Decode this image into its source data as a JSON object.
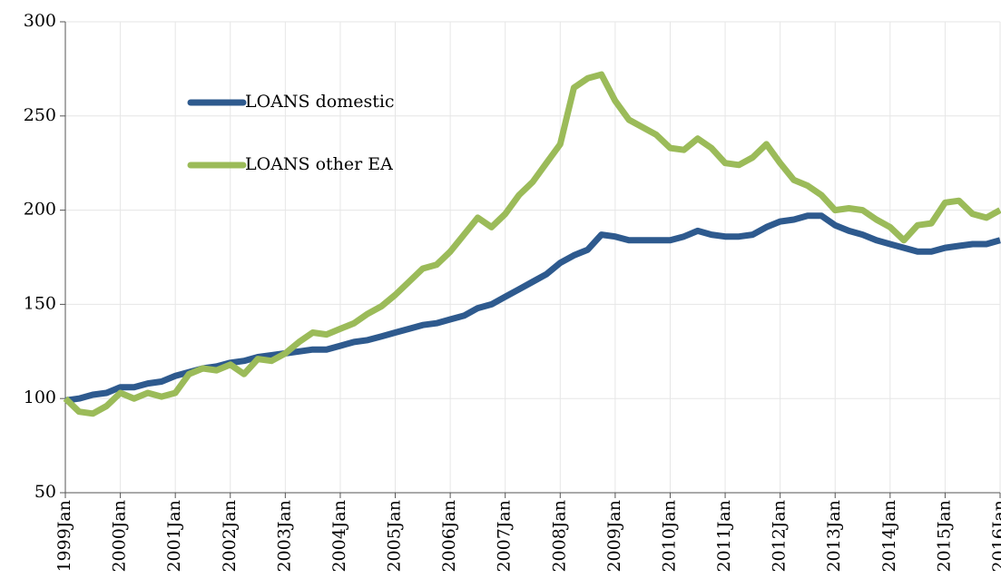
{
  "chart_data": {
    "type": "line",
    "categories": [
      "1999Jan",
      null,
      null,
      null,
      "2000Jan",
      null,
      null,
      null,
      "2001Jan",
      null,
      null,
      null,
      "2002Jan",
      null,
      null,
      null,
      "2003Jan",
      null,
      null,
      null,
      "2004Jan",
      null,
      null,
      null,
      "2005Jan",
      null,
      null,
      null,
      "2006Jan",
      null,
      null,
      null,
      "2007Jan",
      null,
      null,
      null,
      "2008Jan",
      null,
      null,
      null,
      "2009Jan",
      null,
      null,
      null,
      "2010Jan",
      null,
      null,
      null,
      "2011Jan",
      null,
      null,
      null,
      "2012Jan",
      null,
      null,
      null,
      "2013Jan",
      null,
      null,
      null,
      "2014Jan",
      null,
      null,
      null,
      "2015Jan",
      null,
      null,
      null,
      "2016Jan"
    ],
    "series": [
      {
        "name": "LOANS domestic",
        "color": "#2e5a8e",
        "values": [
          99,
          100,
          102,
          103,
          106,
          106,
          108,
          109,
          112,
          114,
          116,
          117,
          119,
          120,
          122,
          123,
          124,
          125,
          126,
          126,
          128,
          130,
          131,
          133,
          135,
          137,
          139,
          140,
          142,
          144,
          148,
          150,
          154,
          158,
          162,
          166,
          172,
          176,
          179,
          187,
          186,
          184,
          184,
          184,
          184,
          186,
          189,
          187,
          186,
          186,
          187,
          191,
          194,
          195,
          197,
          197,
          192,
          189,
          187,
          184,
          182,
          180,
          178,
          178,
          180,
          181,
          182,
          182,
          184
        ]
      },
      {
        "name": "LOANS other EA",
        "color": "#9bbb59",
        "values": [
          100,
          93,
          92,
          96,
          103,
          100,
          103,
          101,
          103,
          113,
          116,
          115,
          118,
          113,
          121,
          120,
          124,
          130,
          135,
          134,
          137,
          140,
          145,
          149,
          155,
          162,
          169,
          171,
          178,
          187,
          196,
          191,
          198,
          208,
          215,
          225,
          235,
          265,
          270,
          272,
          258,
          248,
          244,
          240,
          233,
          232,
          238,
          233,
          225,
          224,
          228,
          235,
          225,
          216,
          213,
          208,
          200,
          201,
          200,
          195,
          191,
          184,
          192,
          193,
          204,
          205,
          198,
          196,
          200
        ]
      }
    ],
    "ylim": [
      50,
      300
    ],
    "yticks": [
      50,
      100,
      150,
      200,
      250,
      300
    ],
    "grid": true,
    "legend": "upper left"
  }
}
